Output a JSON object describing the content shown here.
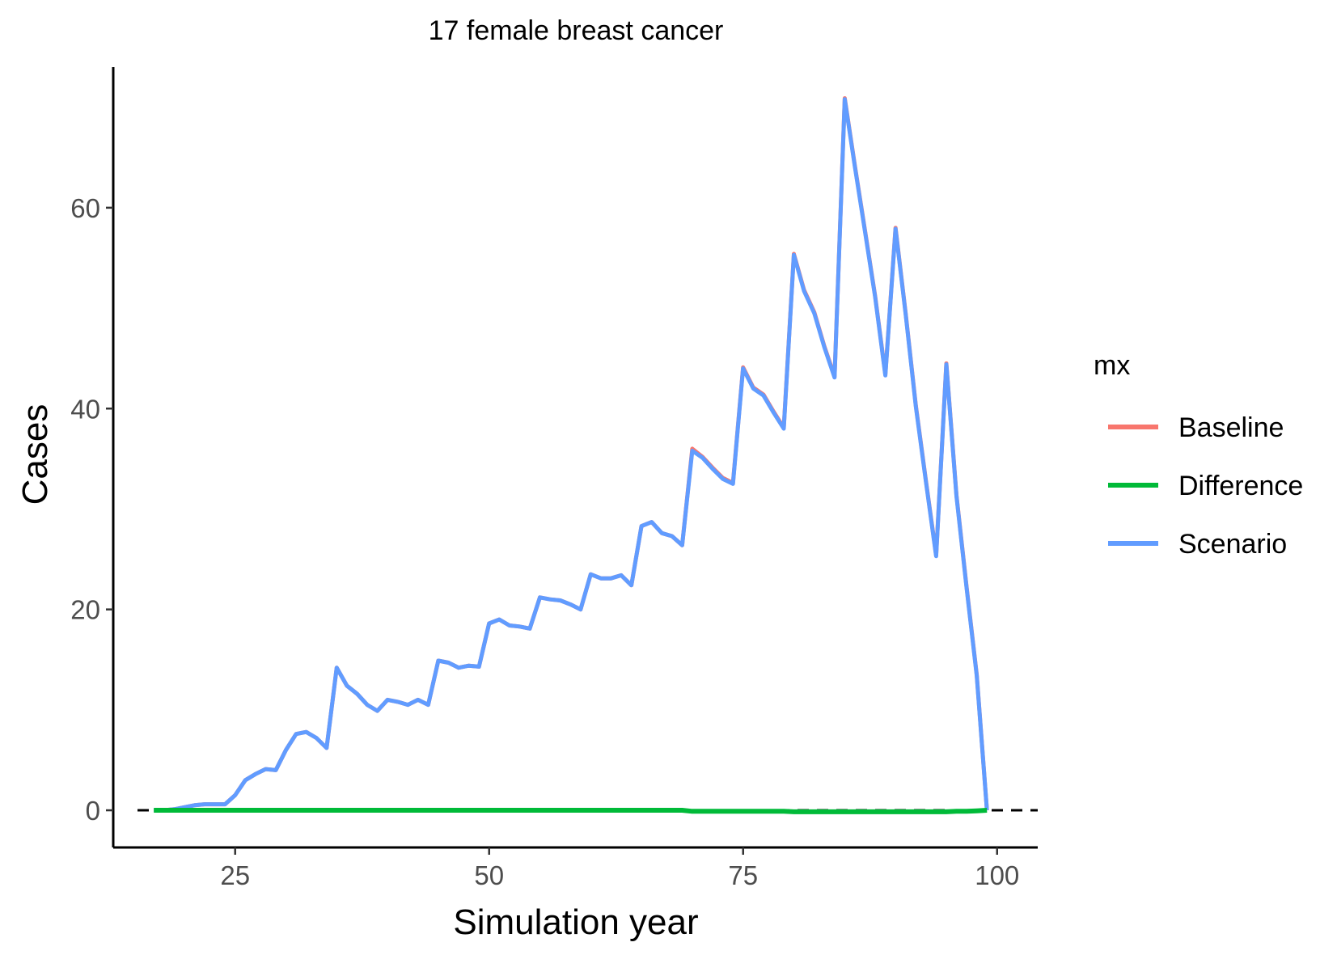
{
  "chart_data": {
    "type": "line",
    "title": "17 female breast cancer",
    "xlabel": "Simulation year",
    "ylabel": "Cases",
    "xlim": [
      13,
      104
    ],
    "ylim": [
      -3.7,
      74
    ],
    "xticks": [
      25,
      50,
      75,
      100
    ],
    "xtick_labels": [
      "25",
      "50",
      "75",
      "100"
    ],
    "yticks": [
      0,
      20,
      40,
      60
    ],
    "ytick_labels": [
      "0",
      "20",
      "40",
      "60"
    ],
    "grid": false,
    "reference_line": {
      "y": 0,
      "style": "dashed",
      "color": "#000000"
    },
    "legend": {
      "title": "mx",
      "placement": "right",
      "entries": [
        {
          "label": "Baseline",
          "color": "#F8766D"
        },
        {
          "label": "Difference",
          "color": "#00BA38"
        },
        {
          "label": "Scenario",
          "color": "#619CFF"
        }
      ]
    },
    "x": [
      17,
      18,
      19,
      20,
      21,
      22,
      23,
      24,
      25,
      26,
      27,
      28,
      29,
      30,
      31,
      32,
      33,
      34,
      35,
      36,
      37,
      38,
      39,
      40,
      41,
      42,
      43,
      44,
      45,
      46,
      47,
      48,
      49,
      50,
      51,
      52,
      53,
      54,
      55,
      56,
      57,
      58,
      59,
      60,
      61,
      62,
      63,
      64,
      65,
      66,
      67,
      68,
      69,
      70,
      71,
      72,
      73,
      74,
      75,
      76,
      77,
      78,
      79,
      80,
      81,
      82,
      83,
      84,
      85,
      86,
      87,
      88,
      89,
      90,
      91,
      92,
      93,
      94,
      95,
      96,
      97,
      98,
      99
    ],
    "series": [
      {
        "name": "Baseline",
        "color": "#F8766D",
        "values": [
          0,
          0,
          0.1,
          0.3,
          0.5,
          0.6,
          0.6,
          0.6,
          1.5,
          3.0,
          3.6,
          4.1,
          4.0,
          6.0,
          7.6,
          7.8,
          7.2,
          6.2,
          14.2,
          12.4,
          11.6,
          10.5,
          9.9,
          11.0,
          10.8,
          10.5,
          11.0,
          10.5,
          14.9,
          14.7,
          14.2,
          14.4,
          14.3,
          18.6,
          19.0,
          18.4,
          18.3,
          18.1,
          21.2,
          21.0,
          20.9,
          20.5,
          20.0,
          23.5,
          23.1,
          23.1,
          23.4,
          22.4,
          28.3,
          28.7,
          27.6,
          27.3,
          26.4,
          36.0,
          35.2,
          34.1,
          33.1,
          32.6,
          44.1,
          42.1,
          41.4,
          39.7,
          38.1,
          55.4,
          51.8,
          49.6,
          46.2,
          43.2,
          70.9,
          64.2,
          57.7,
          51.2,
          43.4,
          58.0,
          49.5,
          40.3,
          32.8,
          25.4,
          44.5,
          31.4,
          22.2,
          13.5,
          0
        ]
      },
      {
        "name": "Scenario",
        "color": "#619CFF",
        "values": [
          0,
          0,
          0.1,
          0.3,
          0.5,
          0.6,
          0.6,
          0.6,
          1.5,
          3.0,
          3.6,
          4.1,
          4.0,
          6.0,
          7.6,
          7.8,
          7.2,
          6.2,
          14.2,
          12.4,
          11.6,
          10.5,
          9.9,
          11.0,
          10.8,
          10.5,
          11.0,
          10.5,
          14.9,
          14.7,
          14.2,
          14.4,
          14.3,
          18.6,
          19.0,
          18.4,
          18.3,
          18.1,
          21.2,
          21.0,
          20.9,
          20.5,
          20.0,
          23.5,
          23.1,
          23.1,
          23.4,
          22.4,
          28.3,
          28.7,
          27.6,
          27.3,
          26.4,
          35.8,
          35.1,
          34.0,
          33.0,
          32.5,
          44.0,
          42.0,
          41.3,
          39.6,
          38.0,
          55.3,
          51.7,
          49.5,
          46.1,
          43.1,
          70.8,
          64.1,
          57.6,
          51.1,
          43.3,
          57.9,
          49.4,
          40.2,
          32.7,
          25.3,
          44.4,
          31.3,
          22.1,
          13.4,
          0
        ]
      },
      {
        "name": "Difference",
        "color": "#00BA38",
        "values": [
          0,
          0,
          0,
          0,
          0,
          0,
          0,
          0,
          0,
          0,
          0,
          0,
          0,
          0,
          0,
          0,
          0,
          0,
          0,
          0,
          0,
          0,
          0,
          0,
          0,
          0,
          0,
          0,
          0,
          0,
          0,
          0,
          0,
          0,
          0,
          0,
          0,
          0,
          0,
          0,
          0,
          0,
          0,
          0,
          0,
          0,
          0,
          0,
          0,
          0,
          0,
          0,
          0,
          -0.1,
          -0.1,
          -0.1,
          -0.1,
          -0.1,
          -0.1,
          -0.1,
          -0.1,
          -0.1,
          -0.1,
          -0.15,
          -0.15,
          -0.15,
          -0.15,
          -0.15,
          -0.15,
          -0.15,
          -0.15,
          -0.15,
          -0.15,
          -0.15,
          -0.15,
          -0.15,
          -0.15,
          -0.15,
          -0.15,
          -0.1,
          -0.1,
          -0.05,
          0
        ]
      }
    ]
  }
}
